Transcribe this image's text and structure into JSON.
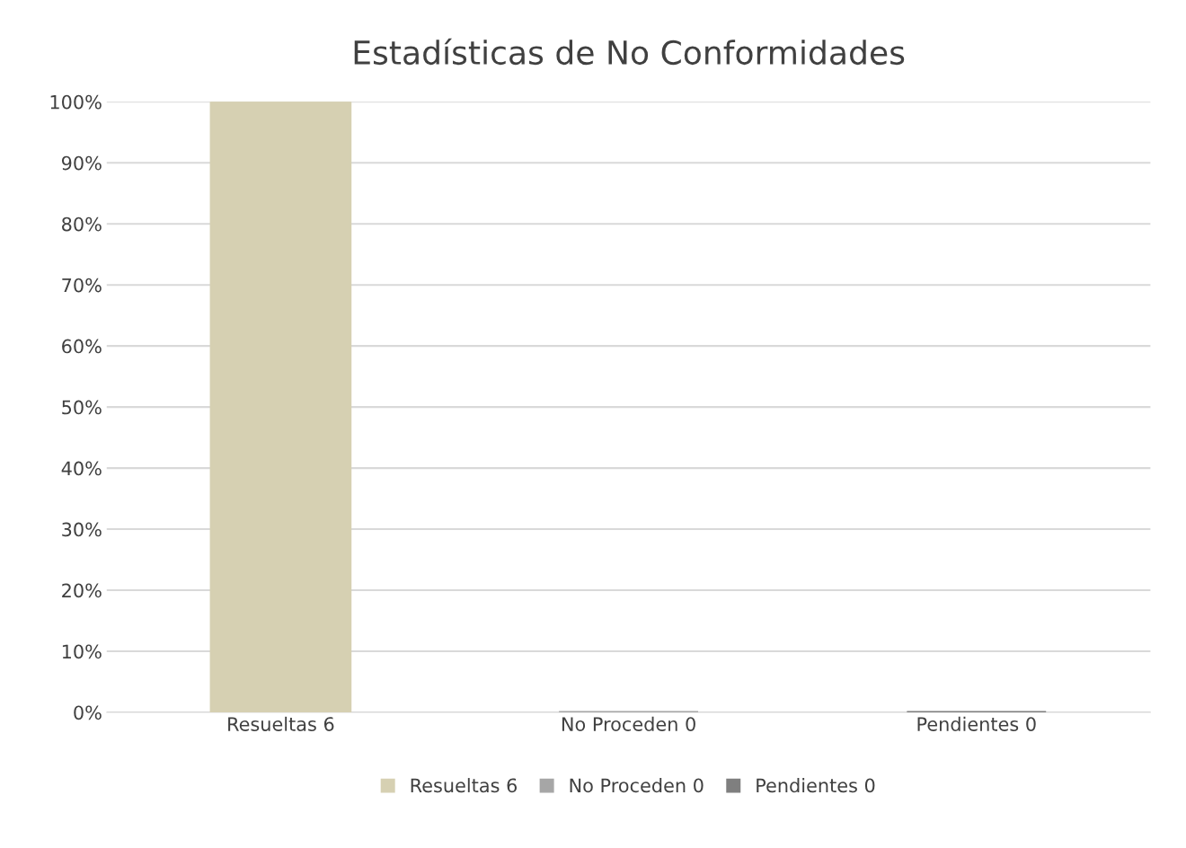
{
  "chart_data": {
    "type": "bar",
    "title": "Estadísticas de No Conformidades",
    "categories": [
      "Resueltas 6",
      "No Proceden 0",
      "Pendientes 0"
    ],
    "series": [
      {
        "name": "Resueltas 6",
        "color": "#d6d0b2",
        "values": [
          100,
          null,
          null
        ]
      },
      {
        "name": "No Proceden 0",
        "color": "#a6a6a6",
        "values": [
          null,
          0,
          null
        ]
      },
      {
        "name": "Pendientes 0",
        "color": "#7f7f7f",
        "values": [
          null,
          null,
          0
        ]
      }
    ],
    "ylim": [
      0,
      100
    ],
    "yticks": [
      {
        "value": 0,
        "label": "0%"
      },
      {
        "value": 10,
        "label": "10%"
      },
      {
        "value": 20,
        "label": "20%"
      },
      {
        "value": 30,
        "label": "30%"
      },
      {
        "value": 40,
        "label": "40%"
      },
      {
        "value": 50,
        "label": "50%"
      },
      {
        "value": 60,
        "label": "60%"
      },
      {
        "value": 70,
        "label": "70%"
      },
      {
        "value": 80,
        "label": "80%"
      },
      {
        "value": 90,
        "label": "90%"
      },
      {
        "value": 100,
        "label": "100%"
      }
    ],
    "grid": "y",
    "legend": "bottom"
  }
}
